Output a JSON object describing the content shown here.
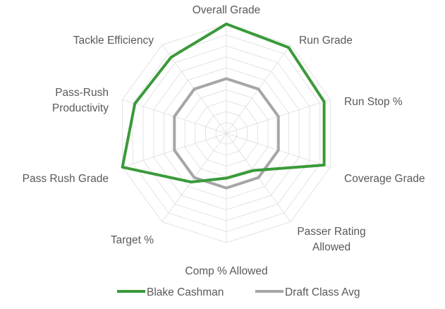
{
  "chart_data": {
    "type": "radar",
    "categories": [
      "Overall Grade",
      "Run Grade",
      "Run Stop %",
      "Coverage Grade",
      "Passer Rating Allowed",
      "Comp % Allowed",
      "Target %",
      "Pass Rush Grade",
      "Pass-Rush Productivity",
      "Tackle Efficiency"
    ],
    "rlim": [
      0,
      100
    ],
    "grid": true,
    "grid_rings": 10,
    "legend_position": "bottom",
    "series": [
      {
        "name": "Blake Cashman",
        "color": "#3a9a3a",
        "values": [
          100,
          97,
          94,
          94,
          42,
          41,
          55,
          100,
          88,
          86
        ]
      },
      {
        "name": "Draft Class Avg",
        "color": "#a6a6a6",
        "values": [
          50,
          50,
          50,
          50,
          50,
          50,
          50,
          50,
          50,
          50
        ]
      }
    ]
  }
}
